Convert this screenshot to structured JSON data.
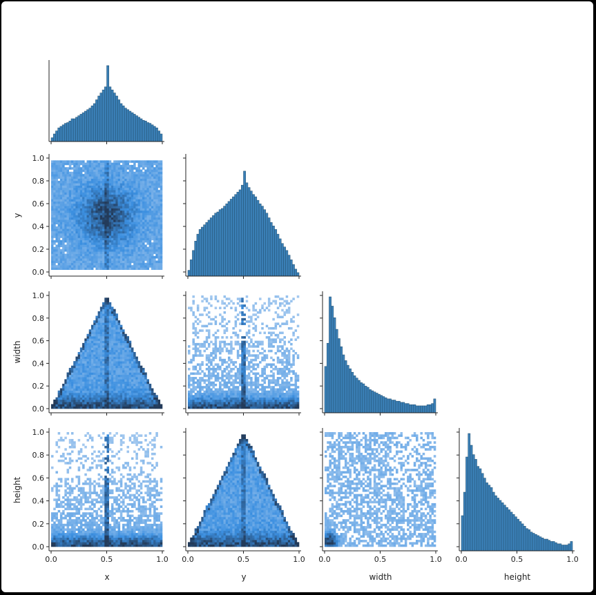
{
  "chart_data": {
    "type": "pairplot",
    "corner": true,
    "variables": [
      "x",
      "y",
      "width",
      "height"
    ],
    "axis_labels": {
      "x": "x",
      "y": "y",
      "width": "width",
      "height": "height"
    },
    "ticks": [
      "0.0",
      "0.2",
      "0.4",
      "0.6",
      "0.8",
      "1.0"
    ],
    "xticks": [
      "0.0",
      "0.5",
      "1.0"
    ],
    "range": [
      0,
      1
    ],
    "colors": {
      "bar": "#3a7fb6",
      "bar_edge": "#24506f",
      "hex_light": "#c7dcf4",
      "hex_mid": "#3b8fe0",
      "hex_dark": "#233b5a"
    },
    "histograms": {
      "x": [
        0.05,
        0.1,
        0.14,
        0.18,
        0.2,
        0.22,
        0.24,
        0.25,
        0.27,
        0.3,
        0.3,
        0.32,
        0.34,
        0.36,
        0.38,
        0.4,
        0.42,
        0.44,
        0.47,
        0.5,
        0.55,
        0.6,
        0.64,
        0.68,
        0.72,
        1.0,
        0.72,
        0.68,
        0.64,
        0.6,
        0.55,
        0.5,
        0.47,
        0.44,
        0.42,
        0.4,
        0.38,
        0.36,
        0.34,
        0.32,
        0.3,
        0.28,
        0.27,
        0.25,
        0.24,
        0.22,
        0.2,
        0.18,
        0.14,
        0.1
      ],
      "y": [
        0.05,
        0.14,
        0.22,
        0.3,
        0.36,
        0.4,
        0.42,
        0.44,
        0.46,
        0.48,
        0.5,
        0.52,
        0.54,
        0.55,
        0.57,
        0.58,
        0.6,
        0.62,
        0.64,
        0.66,
        0.68,
        0.7,
        0.72,
        0.74,
        0.78,
        0.9,
        0.8,
        0.76,
        0.73,
        0.7,
        0.68,
        0.65,
        0.62,
        0.6,
        0.57,
        0.54,
        0.5,
        0.46,
        0.43,
        0.4,
        0.36,
        0.32,
        0.28,
        0.25,
        0.22,
        0.18,
        0.14,
        0.1,
        0.06,
        0.03
      ],
      "width": [
        0.4,
        0.6,
        1.0,
        0.92,
        0.82,
        0.72,
        0.64,
        0.57,
        0.5,
        0.45,
        0.41,
        0.38,
        0.35,
        0.32,
        0.3,
        0.28,
        0.26,
        0.25,
        0.23,
        0.22,
        0.2,
        0.19,
        0.18,
        0.17,
        0.16,
        0.15,
        0.14,
        0.13,
        0.12,
        0.12,
        0.11,
        0.11,
        0.1,
        0.1,
        0.09,
        0.09,
        0.08,
        0.08,
        0.07,
        0.07,
        0.07,
        0.06,
        0.06,
        0.06,
        0.06,
        0.06,
        0.07,
        0.07,
        0.08,
        0.12
      ],
      "height": [
        0.3,
        0.5,
        0.8,
        1.0,
        0.9,
        0.82,
        0.78,
        0.72,
        0.7,
        0.66,
        0.62,
        0.58,
        0.56,
        0.54,
        0.5,
        0.47,
        0.45,
        0.43,
        0.41,
        0.39,
        0.37,
        0.35,
        0.33,
        0.31,
        0.29,
        0.27,
        0.25,
        0.23,
        0.21,
        0.19,
        0.18,
        0.16,
        0.15,
        0.14,
        0.13,
        0.12,
        0.11,
        0.1,
        0.1,
        0.09,
        0.08,
        0.08,
        0.07,
        0.06,
        0.06,
        0.05,
        0.05,
        0.05,
        0.06,
        0.08
      ]
    }
  }
}
